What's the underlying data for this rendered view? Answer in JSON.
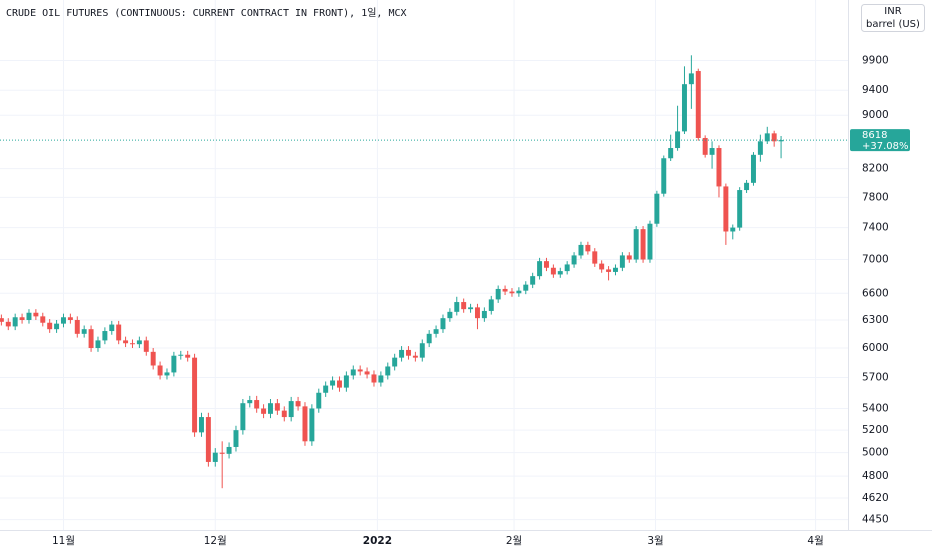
{
  "chart_data": {
    "type": "candlestick",
    "title": "CRUDE OIL FUTURES (CONTINUOUS: CURRENT CONTRACT IN FRONT), 1일, MCX",
    "currency": "INR",
    "unit": "barrel (US)",
    "change_label": "+37.08%",
    "log_scale": true,
    "grid": true,
    "up_color": "#26a69a",
    "down_color": "#ef5350",
    "ylim": [
      4370,
      11000
    ],
    "yticks": [
      4450,
      4620,
      4800,
      5000,
      5200,
      5400,
      5700,
      6000,
      6300,
      6600,
      7000,
      7400,
      7800,
      8200,
      9000,
      9400,
      9900
    ],
    "xlim": [
      -0.2,
      122.7
    ],
    "xticks": [
      {
        "value": 9,
        "label": "11월"
      },
      {
        "value": 31,
        "label": "12월"
      },
      {
        "value": 54.5,
        "label": "2022"
      },
      {
        "value": 74.3,
        "label": "2월"
      },
      {
        "value": 94.8,
        "label": "3월"
      },
      {
        "value": 118,
        "label": "4월"
      }
    ],
    "open": [
      6320,
      6280,
      6230,
      6330,
      6300,
      6380,
      6340,
      6270,
      6200,
      6260,
      6330,
      6300,
      6150,
      6200,
      6000,
      6080,
      6180,
      6250,
      6080,
      6050,
      6040,
      6080,
      5960,
      5820,
      5720,
      5750,
      5920,
      5930,
      5900,
      5180,
      5320,
      4920,
      5000,
      4990,
      5050,
      5200,
      5450,
      5480,
      5400,
      5350,
      5450,
      5380,
      5320,
      5470,
      5420,
      5100,
      5400,
      5550,
      5620,
      5670,
      5600,
      5720,
      5780,
      5760,
      5730,
      5650,
      5720,
      5810,
      5900,
      5980,
      5920,
      5900,
      6050,
      6150,
      6200,
      6320,
      6390,
      6500,
      6420,
      6440,
      6320,
      6400,
      6530,
      6650,
      6620,
      6600,
      6630,
      6700,
      6800,
      6980,
      6900,
      6820,
      6860,
      6940,
      7050,
      7180,
      7100,
      6950,
      6880,
      6850,
      6900,
      7050,
      7000,
      7380,
      7000,
      7450,
      7850,
      8350,
      8500,
      8750,
      9500,
      9720,
      8650,
      8400,
      8500,
      7950,
      7350,
      7400,
      7900,
      8000,
      8400,
      8600,
      8720,
      8600
    ],
    "high": [
      6360,
      6320,
      6370,
      6370,
      6420,
      6420,
      6380,
      6310,
      6300,
      6370,
      6370,
      6340,
      6240,
      6240,
      6120,
      6220,
      6290,
      6290,
      6120,
      6090,
      6120,
      6120,
      6000,
      5860,
      5790,
      5960,
      5970,
      5970,
      5940,
      5360,
      5360,
      5040,
      5100,
      5090,
      5240,
      5490,
      5520,
      5520,
      5440,
      5490,
      5490,
      5420,
      5510,
      5510,
      5460,
      5440,
      5590,
      5660,
      5710,
      5710,
      5760,
      5820,
      5820,
      5800,
      5770,
      5760,
      5850,
      5940,
      6020,
      6020,
      5960,
      6090,
      6190,
      6240,
      6360,
      6430,
      6560,
      6540,
      6480,
      6480,
      6440,
      6570,
      6690,
      6690,
      6660,
      6670,
      6740,
      6840,
      7020,
      7020,
      6940,
      6900,
      6980,
      7090,
      7220,
      7220,
      7140,
      6990,
      6920,
      6940,
      7090,
      7090,
      7420,
      7420,
      7490,
      7890,
      8390,
      8700,
      9150,
      9800,
      9990,
      9760,
      8690,
      8600,
      8540,
      7990,
      7440,
      7940,
      8040,
      8440,
      8700,
      8820,
      8760,
      8680
    ],
    "low": [
      6240,
      6190,
      6190,
      6260,
      6260,
      6300,
      6230,
      6160,
      6160,
      6220,
      6260,
      6110,
      6110,
      5960,
      5960,
      6040,
      6140,
      6040,
      6010,
      6000,
      6000,
      5920,
      5780,
      5680,
      5680,
      5710,
      5880,
      5860,
      5140,
      5140,
      4880,
      4880,
      4700,
      4950,
      5010,
      5160,
      5410,
      5360,
      5310,
      5310,
      5340,
      5280,
      5280,
      5380,
      5060,
      5060,
      5360,
      5510,
      5580,
      5560,
      5560,
      5680,
      5720,
      5690,
      5610,
      5610,
      5680,
      5770,
      5860,
      5880,
      5860,
      5860,
      6010,
      6110,
      6160,
      6280,
      6350,
      6380,
      6380,
      6200,
      6280,
      6360,
      6490,
      6580,
      6560,
      6560,
      6590,
      6660,
      6760,
      6860,
      6780,
      6780,
      6820,
      6900,
      7010,
      7060,
      6910,
      6840,
      6750,
      6810,
      6860,
      6960,
      6960,
      6960,
      6960,
      7410,
      7810,
      8310,
      8460,
      8710,
      9100,
      8610,
      8360,
      8200,
      7800,
      7180,
      7250,
      7360,
      7860,
      7960,
      8300,
      8560,
      8520,
      8350
    ],
    "close": [
      6280,
      6230,
      6330,
      6300,
      6380,
      6340,
      6270,
      6200,
      6260,
      6330,
      6300,
      6150,
      6200,
      6000,
      6080,
      6180,
      6250,
      6080,
      6050,
      6040,
      6080,
      5960,
      5820,
      5720,
      5750,
      5920,
      5930,
      5900,
      5180,
      5320,
      4920,
      5000,
      4990,
      5050,
      5200,
      5450,
      5480,
      5400,
      5350,
      5450,
      5380,
      5320,
      5470,
      5420,
      5100,
      5400,
      5550,
      5620,
      5670,
      5600,
      5720,
      5780,
      5760,
      5730,
      5650,
      5720,
      5810,
      5900,
      5980,
      5920,
      5900,
      6050,
      6150,
      6200,
      6320,
      6390,
      6500,
      6420,
      6440,
      6320,
      6400,
      6530,
      6650,
      6620,
      6600,
      6630,
      6700,
      6800,
      6980,
      6900,
      6820,
      6860,
      6940,
      7050,
      7180,
      7100,
      6950,
      6880,
      6850,
      6900,
      7050,
      7000,
      7380,
      7000,
      7450,
      7850,
      8350,
      8500,
      8750,
      9500,
      9680,
      8650,
      8400,
      8500,
      7950,
      7350,
      7400,
      7900,
      8000,
      8400,
      8600,
      8720,
      8600,
      8618
    ]
  }
}
